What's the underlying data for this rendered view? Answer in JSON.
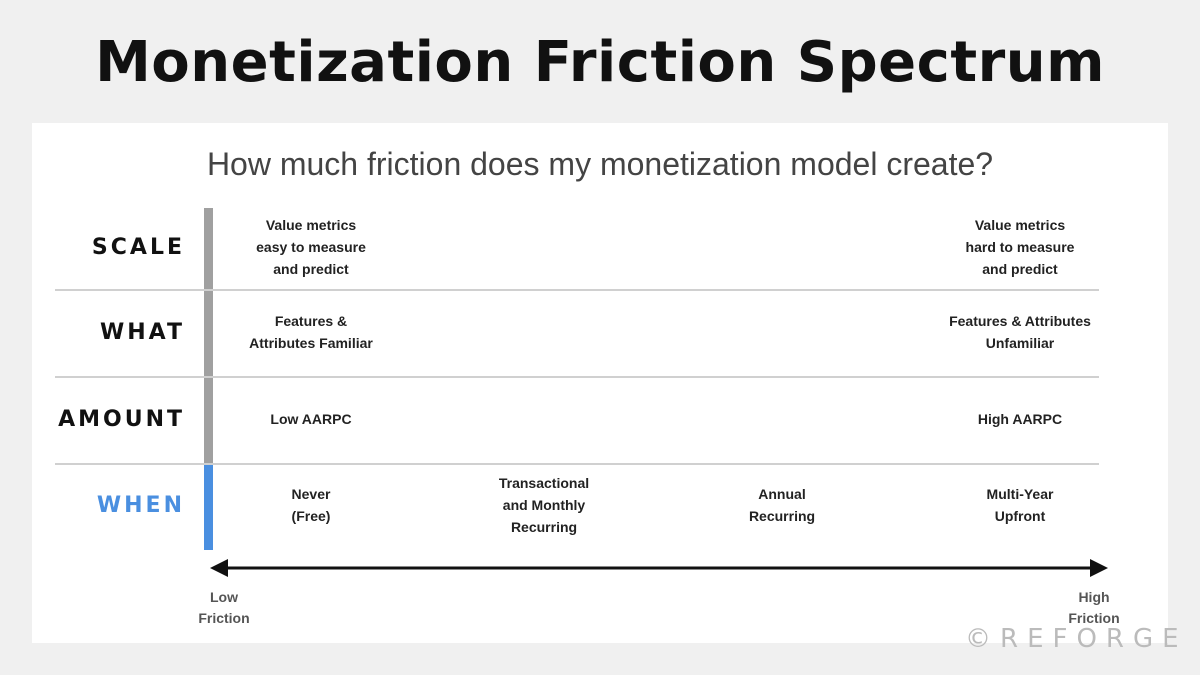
{
  "title": "Monetization Friction Spectrum",
  "subtitle": "How much friction does my monetization model create?",
  "colors": {
    "neutral_bar": "#a0a0a0",
    "when_accent": "#4a8fe0"
  },
  "rows": [
    {
      "label": "SCALE",
      "cells": [
        "Value metrics\neasy to measure\nand predict",
        "",
        "",
        "Value metrics\nhard to measure\nand predict"
      ]
    },
    {
      "label": "WHAT",
      "cells": [
        "Features &\nAttributes Familiar",
        "",
        "",
        "Features & Attributes\nUnfamiliar"
      ]
    },
    {
      "label": "AMOUNT",
      "cells": [
        "Low AARPC",
        "",
        "",
        "High AARPC"
      ]
    },
    {
      "label": "WHEN",
      "cells": [
        "Never\n(Free)",
        "Transactional\nand Monthly\nRecurring",
        "Annual\nRecurring",
        "Multi-Year\nUpfront"
      ]
    }
  ],
  "axis": {
    "low": "Low\nFriction",
    "high": "High\nFriction"
  },
  "watermark": "©REFORGE"
}
